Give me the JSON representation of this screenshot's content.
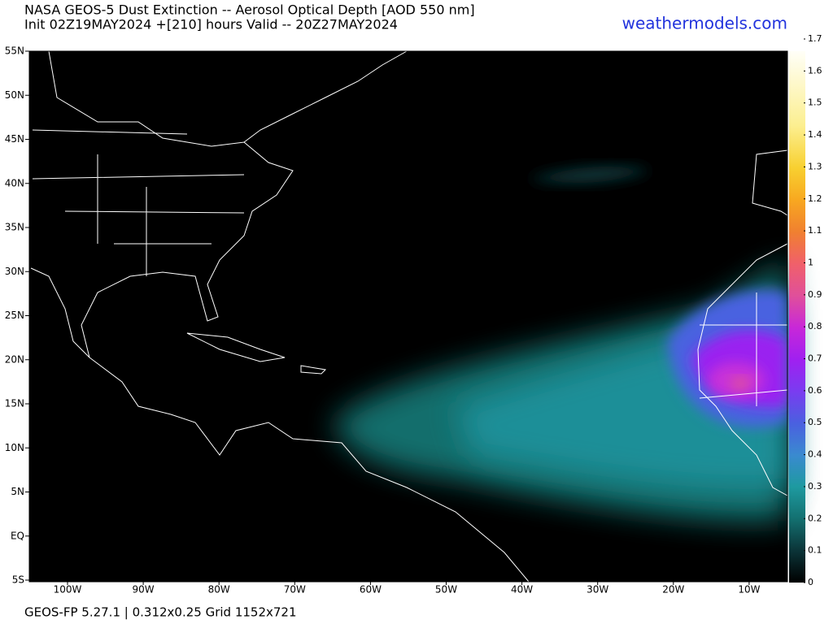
{
  "header": {
    "title": "NASA GEOS-5 Dust Extinction -- Aerosol Optical Depth [AOD 550 nm]",
    "subtitle": "Init 02Z19MAY2024 +[210] hours Valid -- 20Z27MAY2024",
    "site": "weathermodels.com"
  },
  "map": {
    "lat_ticks": [
      {
        "value": 55,
        "label": "55N"
      },
      {
        "value": 50,
        "label": "50N"
      },
      {
        "value": 45,
        "label": "45N"
      },
      {
        "value": 40,
        "label": "40N"
      },
      {
        "value": 35,
        "label": "35N"
      },
      {
        "value": 30,
        "label": "30N"
      },
      {
        "value": 25,
        "label": "25N"
      },
      {
        "value": 20,
        "label": "20N"
      },
      {
        "value": 15,
        "label": "15N"
      },
      {
        "value": 10,
        "label": "10N"
      },
      {
        "value": 5,
        "label": "5N"
      },
      {
        "value": 0,
        "label": "EQ"
      },
      {
        "value": -5,
        "label": "5S"
      }
    ],
    "lon_ticks": [
      {
        "value": -100,
        "label": "100W"
      },
      {
        "value": -90,
        "label": "90W"
      },
      {
        "value": -80,
        "label": "80W"
      },
      {
        "value": -70,
        "label": "70W"
      },
      {
        "value": -60,
        "label": "60W"
      },
      {
        "value": -50,
        "label": "50W"
      },
      {
        "value": -40,
        "label": "40W"
      },
      {
        "value": -30,
        "label": "30W"
      },
      {
        "value": -20,
        "label": "20W"
      },
      {
        "value": -10,
        "label": "10W"
      }
    ]
  },
  "colorbar": {
    "lim": [
      0,
      1.7
    ],
    "ticks": [
      0,
      0.1,
      0.2,
      0.3,
      0.4,
      0.5,
      0.6,
      0.7,
      0.8,
      0.9,
      1,
      1.1,
      1.2,
      1.3,
      1.4,
      1.5,
      1.6,
      1.7
    ]
  },
  "footer": "GEOS-FP 5.27.1 | 0.312x0.25 Grid 1152x721"
}
